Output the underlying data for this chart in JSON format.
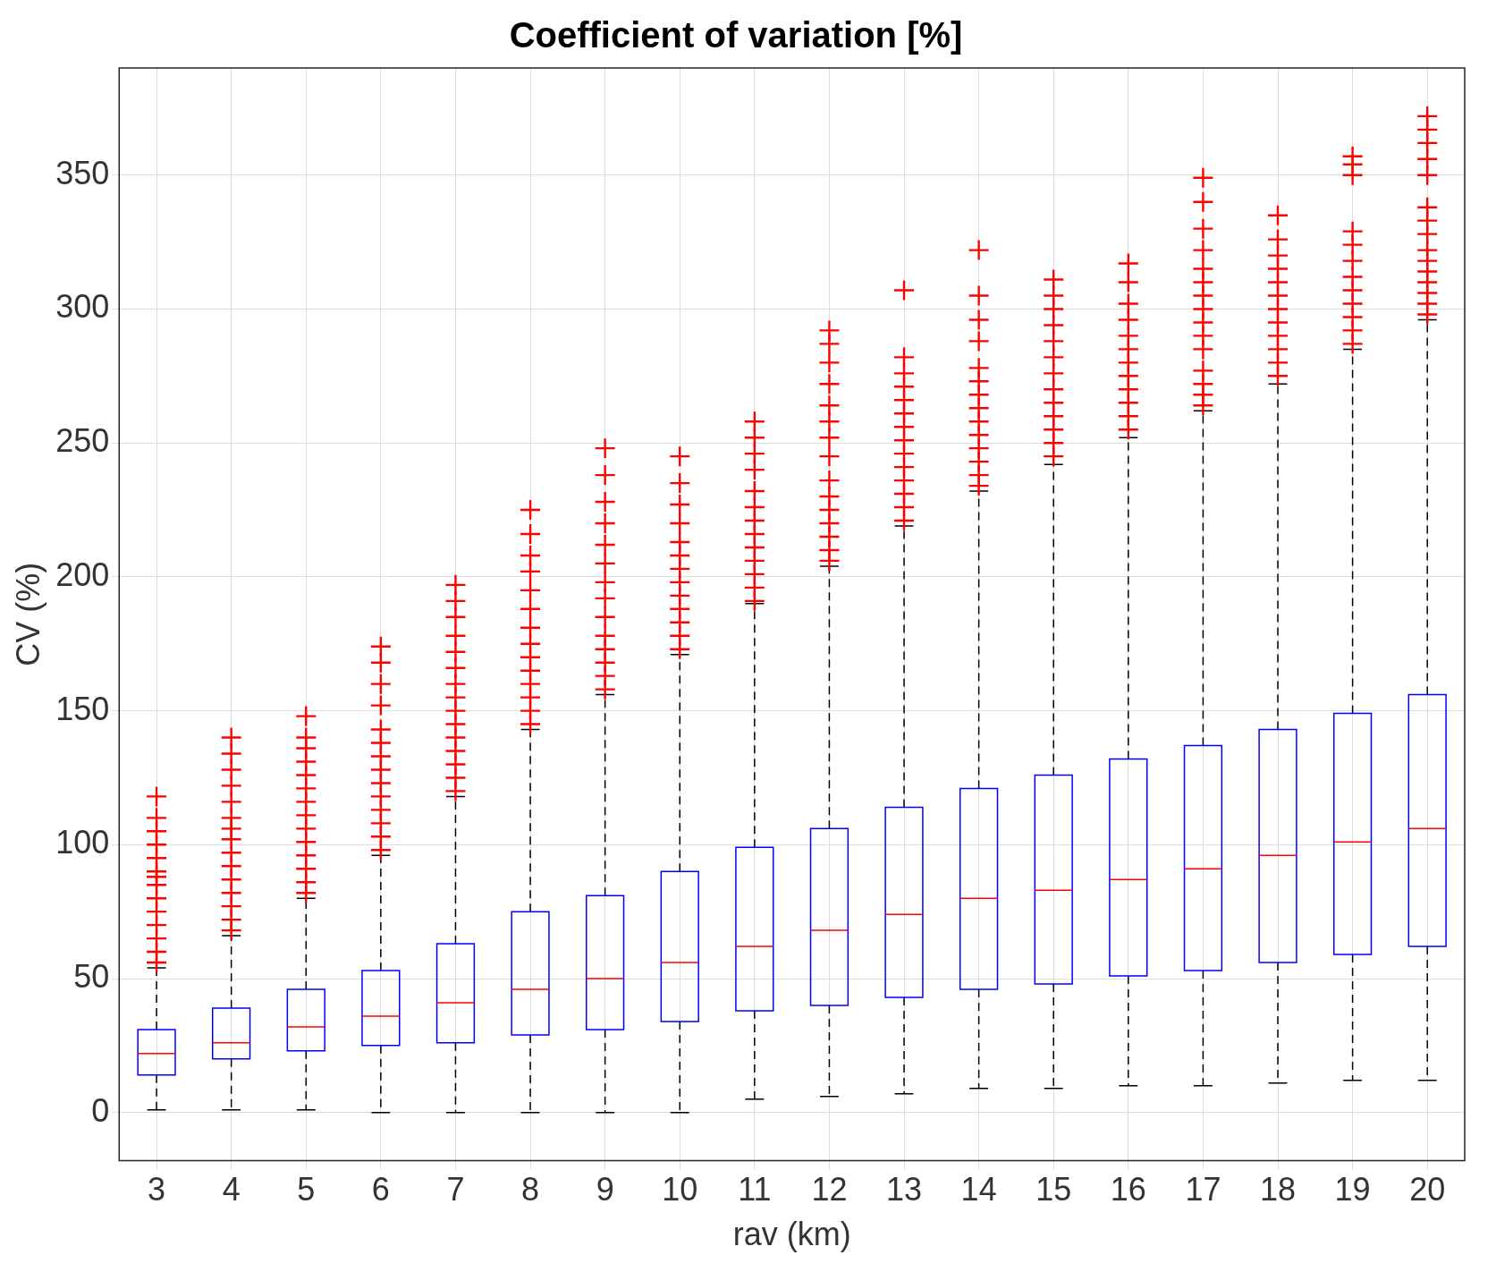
{
  "chart_data": {
    "type": "box",
    "title": "Coefficient of variation [%]",
    "xlabel": "rav (km)",
    "ylabel": "CV (%)",
    "categories": [
      "3",
      "4",
      "5",
      "6",
      "7",
      "8",
      "9",
      "10",
      "11",
      "12",
      "13",
      "14",
      "15",
      "16",
      "17",
      "18",
      "19",
      "20"
    ],
    "color": "#0000ff",
    "marker": "cross",
    "grid": true,
    "ylim": [
      -18,
      390
    ],
    "yticks": [
      0,
      50,
      100,
      150,
      200,
      250,
      300,
      350
    ],
    "boxes": [
      {
        "low": 1,
        "q1": 14,
        "median": 22,
        "q3": 31,
        "high": 54,
        "outliers": [
          56,
          60,
          65,
          70,
          75,
          80,
          85,
          88,
          90,
          95,
          100,
          105,
          110,
          118
        ]
      },
      {
        "low": 1,
        "q1": 20,
        "median": 26,
        "q3": 39,
        "high": 66,
        "outliers": [
          68,
          72,
          77,
          82,
          87,
          92,
          97,
          102,
          106,
          110,
          116,
          122,
          128,
          134,
          140
        ]
      },
      {
        "low": 1,
        "q1": 23,
        "median": 32,
        "q3": 46,
        "high": 80,
        "outliers": [
          82,
          86,
          91,
          96,
          101,
          106,
          111,
          116,
          121,
          126,
          131,
          136,
          140,
          148
        ]
      },
      {
        "low": 0,
        "q1": 25,
        "median": 36,
        "q3": 53,
        "high": 96,
        "outliers": [
          98,
          103,
          108,
          113,
          118,
          123,
          128,
          133,
          138,
          143,
          152,
          160,
          168,
          174
        ]
      },
      {
        "low": 0,
        "q1": 26,
        "median": 41,
        "q3": 63,
        "high": 118,
        "outliers": [
          120,
          125,
          130,
          135,
          140,
          145,
          150,
          155,
          160,
          166,
          172,
          178,
          185,
          191,
          197
        ]
      },
      {
        "low": 0,
        "q1": 29,
        "median": 46,
        "q3": 75,
        "high": 143,
        "outliers": [
          145,
          150,
          155,
          160,
          165,
          170,
          175,
          181,
          188,
          195,
          202,
          208,
          216,
          225
        ]
      },
      {
        "low": 0,
        "q1": 31,
        "median": 50,
        "q3": 81,
        "high": 156,
        "outliers": [
          158,
          163,
          168,
          173,
          178,
          185,
          192,
          198,
          205,
          212,
          220,
          228,
          238,
          248
        ]
      },
      {
        "low": 0,
        "q1": 34,
        "median": 56,
        "q3": 90,
        "high": 171,
        "outliers": [
          173,
          178,
          183,
          188,
          193,
          198,
          203,
          208,
          213,
          220,
          227,
          235,
          245
        ]
      },
      {
        "low": 5,
        "q1": 38,
        "median": 62,
        "q3": 99,
        "high": 190,
        "outliers": [
          191,
          196,
          201,
          206,
          211,
          216,
          221,
          226,
          232,
          240,
          246,
          252,
          258
        ]
      },
      {
        "low": 6,
        "q1": 40,
        "median": 68,
        "q3": 106,
        "high": 204,
        "outliers": [
          206,
          210,
          215,
          220,
          225,
          230,
          236,
          245,
          252,
          258,
          264,
          272,
          280,
          287,
          292
        ]
      },
      {
        "low": 7,
        "q1": 43,
        "median": 74,
        "q3": 114,
        "high": 219,
        "outliers": [
          221,
          226,
          231,
          236,
          241,
          246,
          251,
          256,
          261,
          266,
          271,
          276,
          282,
          307
        ]
      },
      {
        "low": 9,
        "q1": 46,
        "median": 80,
        "q3": 121,
        "high": 232,
        "outliers": [
          234,
          238,
          243,
          248,
          253,
          258,
          263,
          268,
          273,
          278,
          288,
          296,
          305,
          322
        ]
      },
      {
        "low": 9,
        "q1": 48,
        "median": 83,
        "q3": 126,
        "high": 242,
        "outliers": [
          245,
          250,
          255,
          260,
          265,
          270,
          276,
          282,
          288,
          294,
          300,
          305,
          311
        ]
      },
      {
        "low": 10,
        "q1": 51,
        "median": 87,
        "q3": 132,
        "high": 252,
        "outliers": [
          255,
          260,
          265,
          270,
          275,
          280,
          285,
          290,
          296,
          302,
          310,
          317
        ]
      },
      {
        "low": 10,
        "q1": 53,
        "median": 91,
        "q3": 137,
        "high": 262,
        "outliers": [
          264,
          268,
          272,
          277,
          285,
          290,
          295,
          300,
          305,
          310,
          315,
          322,
          330,
          340,
          349
        ]
      },
      {
        "low": 11,
        "q1": 56,
        "median": 96,
        "q3": 143,
        "high": 272,
        "outliers": [
          275,
          280,
          285,
          290,
          295,
          300,
          305,
          310,
          315,
          320,
          326,
          335
        ]
      },
      {
        "low": 12,
        "q1": 59,
        "median": 101,
        "q3": 149,
        "high": 285,
        "outliers": [
          287,
          292,
          297,
          302,
          307,
          312,
          318,
          324,
          329,
          350,
          354,
          357
        ]
      },
      {
        "low": 12,
        "q1": 62,
        "median": 106,
        "q3": 156,
        "high": 296,
        "outliers": [
          298,
          302,
          306,
          310,
          314,
          318,
          322,
          328,
          333,
          338,
          350,
          356,
          362,
          367,
          372
        ]
      }
    ]
  }
}
